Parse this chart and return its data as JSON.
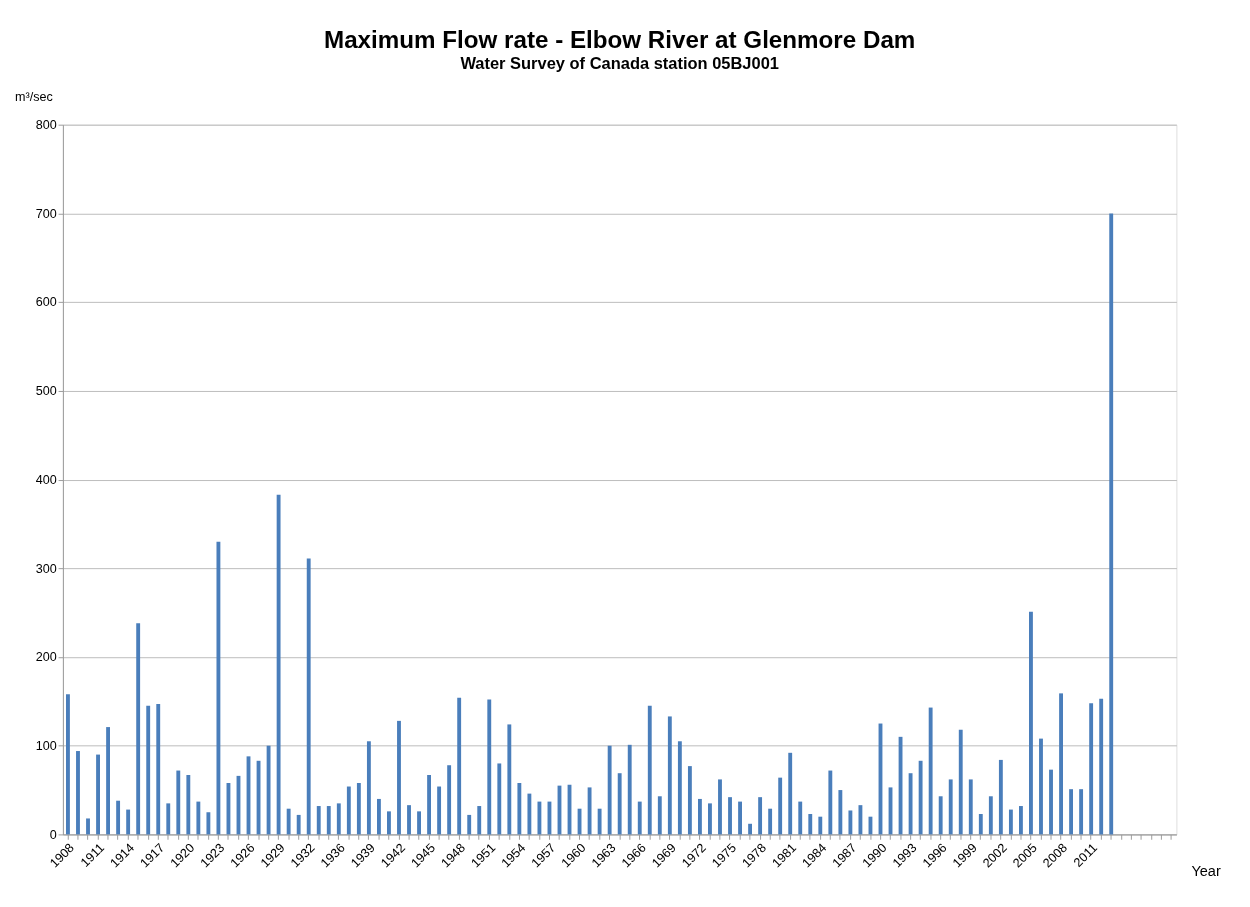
{
  "chart_data": {
    "type": "bar",
    "title": "Maximum Flow rate - Elbow River at Glenmore Dam",
    "subtitle": "Water Survey of Canada station 05BJ001",
    "ylabel": "m³/sec",
    "xlabel": "Year",
    "categories": [
      "1908",
      null,
      null,
      "1911",
      null,
      null,
      "1914",
      null,
      null,
      "1917",
      null,
      null,
      "1920",
      null,
      null,
      "1923",
      null,
      null,
      "1926",
      null,
      null,
      "1929",
      null,
      null,
      "1932",
      null,
      null,
      "1936",
      null,
      null,
      "1939",
      null,
      null,
      "1942",
      null,
      null,
      "1945",
      null,
      null,
      "1948",
      null,
      null,
      "1951",
      null,
      null,
      "1954",
      null,
      null,
      "1957",
      null,
      null,
      "1960",
      null,
      null,
      "1963",
      null,
      null,
      "1966",
      null,
      null,
      "1969",
      null,
      null,
      "1972",
      null,
      null,
      "1975",
      null,
      null,
      "1978",
      null,
      null,
      "1981",
      null,
      null,
      "1984",
      null,
      null,
      "1987",
      null,
      null,
      "1990",
      null,
      null,
      "1993",
      null,
      null,
      "1996",
      null,
      null,
      "1999",
      null,
      null,
      "2002",
      null,
      null,
      "2005",
      null,
      null,
      "2008",
      null,
      null,
      "2011",
      null,
      null,
      null,
      null,
      null,
      null,
      null,
      null
    ],
    "values": [
      158,
      94,
      18,
      90,
      121,
      38,
      28,
      238,
      145,
      147,
      35,
      72,
      67,
      37,
      25,
      330,
      58,
      66,
      88,
      83,
      100,
      383,
      29,
      22,
      311,
      32,
      32,
      35,
      54,
      58,
      105,
      40,
      26,
      128,
      33,
      26,
      67,
      54,
      78,
      154,
      22,
      32,
      152,
      80,
      124,
      58,
      46,
      37,
      37,
      55,
      56,
      29,
      53,
      29,
      100,
      69,
      101,
      37,
      145,
      43,
      133,
      105,
      77,
      40,
      35,
      62,
      42,
      37,
      12,
      42,
      29,
      64,
      92,
      37,
      23,
      20,
      72,
      50,
      27,
      33,
      20,
      125,
      53,
      110,
      69,
      83,
      143,
      43,
      62,
      118,
      62,
      23,
      43,
      84,
      28,
      32,
      251,
      108,
      73,
      159,
      51,
      51,
      148,
      153,
      700,
      null,
      null,
      null,
      null,
      null,
      null
    ],
    "color": "#4a7ebb",
    "ylim": [
      0,
      800
    ],
    "yticks": [
      0,
      100,
      200,
      300,
      400,
      500,
      600,
      700,
      800
    ],
    "grid": "y"
  }
}
